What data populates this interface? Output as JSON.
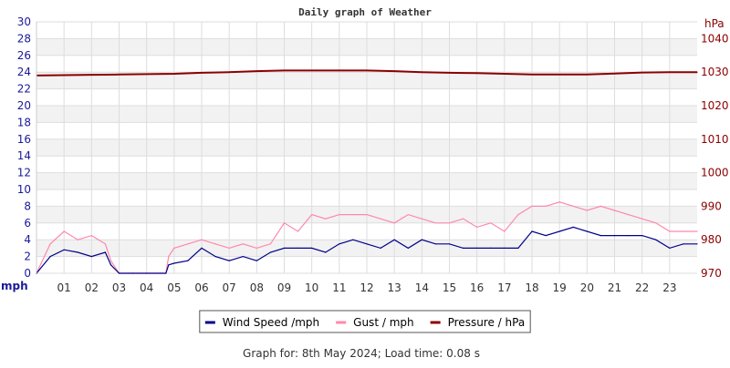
{
  "chart_data": {
    "type": "line",
    "title": "Daily graph of Weather",
    "x_tick_labels": [
      "01",
      "02",
      "03",
      "04",
      "05",
      "06",
      "07",
      "08",
      "09",
      "10",
      "11",
      "12",
      "13",
      "14",
      "15",
      "16",
      "17",
      "18",
      "19",
      "20",
      "21",
      "22",
      "23"
    ],
    "xlim": [
      0,
      24
    ],
    "y_left": {
      "label": "mph",
      "ylim": [
        0,
        30
      ],
      "ticks": [
        0,
        2,
        4,
        6,
        8,
        10,
        12,
        14,
        16,
        18,
        20,
        22,
        24,
        26,
        28,
        30
      ]
    },
    "y_right": {
      "label": "hPa",
      "ylim": [
        970,
        1045
      ],
      "ticks": [
        970,
        980,
        990,
        1000,
        1010,
        1020,
        1030,
        1040
      ]
    },
    "grid": true,
    "legend_position": "bottom",
    "series": [
      {
        "name": "Wind Speed /mph",
        "color": "#00008b",
        "axis": "left",
        "x": [
          0,
          0.5,
          1,
          1.5,
          2,
          2.5,
          2.7,
          3,
          3.5,
          4,
          4.5,
          4.7,
          4.8,
          5,
          5.5,
          6,
          6.5,
          7,
          7.5,
          8,
          8.5,
          9,
          9.5,
          10,
          10.5,
          11,
          11.5,
          12,
          12.5,
          13,
          13.5,
          14,
          14.5,
          15,
          15.5,
          16,
          16.5,
          17,
          17.5,
          18,
          18.5,
          19,
          19.5,
          20,
          20.5,
          21,
          21.5,
          22,
          22.5,
          23,
          23.5,
          24
        ],
        "values": [
          0,
          2,
          2.8,
          2.5,
          2,
          2.5,
          1,
          0,
          0,
          0,
          0,
          0,
          1,
          1.2,
          1.5,
          3,
          2,
          1.5,
          2,
          1.5,
          2.5,
          3,
          3,
          3,
          2.5,
          3.5,
          4,
          3.5,
          3,
          4,
          3,
          4,
          3.5,
          3.5,
          3,
          3,
          3,
          3,
          3,
          5,
          4.5,
          5,
          5.5,
          5,
          4.5,
          4.5,
          4.5,
          4.5,
          4,
          3,
          3.5,
          3.5
        ]
      },
      {
        "name": "Gust / mph",
        "color": "#ff88aa",
        "axis": "left",
        "x": [
          0,
          0.5,
          1,
          1.5,
          2,
          2.5,
          2.7,
          3,
          3.5,
          4,
          4.5,
          4.7,
          4.8,
          5,
          5.5,
          6,
          6.5,
          7,
          7.5,
          8,
          8.5,
          9,
          9.5,
          10,
          10.5,
          11,
          11.5,
          12,
          12.5,
          13,
          13.5,
          14,
          14.5,
          15,
          15.5,
          16,
          16.5,
          17,
          17.5,
          18,
          18.5,
          19,
          19.5,
          20,
          20.5,
          21,
          21.5,
          22,
          22.5,
          23,
          23.5,
          24
        ],
        "values": [
          0,
          3.5,
          5,
          4,
          4.5,
          3.5,
          1.5,
          0,
          0,
          0,
          0,
          0,
          2,
          3,
          3.5,
          4,
          3.5,
          3,
          3.5,
          3,
          3.5,
          6,
          5,
          7,
          6.5,
          7,
          7,
          7,
          6.5,
          6,
          7,
          6.5,
          6,
          6,
          6.5,
          5.5,
          6,
          5,
          7,
          8,
          8,
          8.5,
          8,
          7.5,
          8,
          7.5,
          7,
          6.5,
          6,
          5,
          5,
          5
        ]
      },
      {
        "name": "Pressure / hPa",
        "color": "#8b0000",
        "axis": "right",
        "x": [
          0,
          1,
          2,
          3,
          4,
          5,
          6,
          7,
          8,
          9,
          10,
          11,
          12,
          13,
          14,
          15,
          16,
          17,
          18,
          19,
          20,
          21,
          22,
          23,
          24
        ],
        "values": [
          1029.0,
          1029.1,
          1029.2,
          1029.3,
          1029.4,
          1029.5,
          1029.8,
          1030.0,
          1030.3,
          1030.5,
          1030.5,
          1030.5,
          1030.5,
          1030.3,
          1030.0,
          1029.8,
          1029.7,
          1029.5,
          1029.3,
          1029.3,
          1029.3,
          1029.6,
          1029.9,
          1030.0,
          1030.0
        ]
      }
    ]
  },
  "footer": "Graph for: 8th May 2024; Load time: 0.08 s"
}
